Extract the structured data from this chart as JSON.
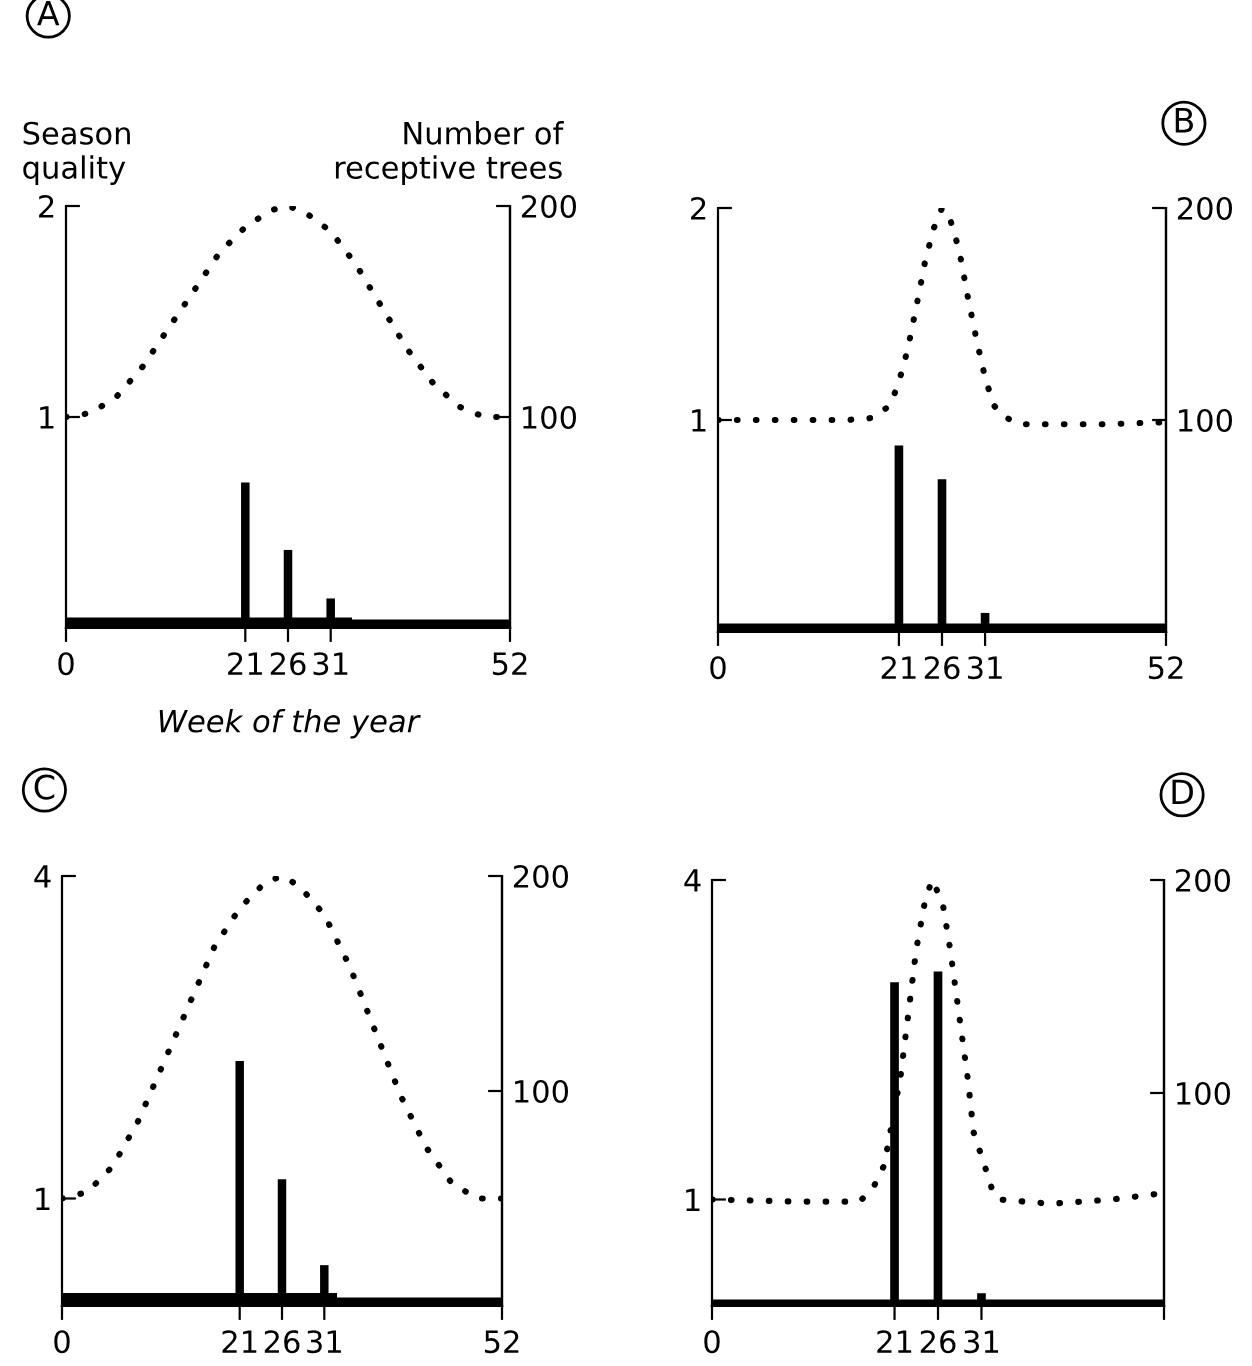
{
  "chart_data": [
    {
      "type": "line",
      "title": "A",
      "ylabel": "Season\nquality",
      "y2label": "Number of\nreceptive trees",
      "xlabel": "Week of the year",
      "xlim": [
        0,
        52
      ],
      "xticks": [
        0,
        21,
        26,
        31,
        52
      ],
      "ylim": [
        0,
        2
      ],
      "yticks": [
        1,
        2
      ],
      "y2lim": [
        0,
        200
      ],
      "y2ticks": [
        100,
        200
      ],
      "series": [
        {
          "type": "area",
          "axis": "y2",
          "color": "#000000",
          "x": [
            0,
            33.5,
            33.5,
            52
          ],
          "values": [
            5,
            5,
            4,
            4
          ]
        },
        {
          "type": "bar",
          "axis": "y2",
          "color": "#000000",
          "x": [
            21,
            26,
            31
          ],
          "values": [
            69,
            37,
            14
          ]
        },
        {
          "color": "#000000",
          "line_style": "dotted",
          "marker": "none",
          "x": [
            0,
            3,
            6,
            9,
            12,
            15,
            18,
            21,
            24,
            26,
            28,
            31,
            34,
            37,
            40,
            43,
            46,
            49,
            52
          ],
          "values": [
            1.0,
            1.02,
            1.1,
            1.24,
            1.42,
            1.6,
            1.78,
            1.9,
            1.98,
            2.0,
            1.97,
            1.88,
            1.72,
            1.52,
            1.32,
            1.16,
            1.05,
            1.0,
            1.0
          ]
        }
      ]
    },
    {
      "type": "line",
      "title": "B",
      "xlim": [
        0,
        52
      ],
      "xticks": [
        0,
        21,
        26,
        31,
        52
      ],
      "ylim": [
        0,
        2
      ],
      "yticks": [
        1,
        2
      ],
      "y2lim": [
        0,
        200
      ],
      "y2ticks": [
        100,
        200
      ],
      "series": [
        {
          "type": "area",
          "axis": "y2",
          "color": "#000000",
          "x": [
            0,
            52
          ],
          "values": [
            4,
            4
          ]
        },
        {
          "type": "bar",
          "axis": "y2",
          "color": "#000000",
          "x": [
            21,
            26,
            31
          ],
          "values": [
            88,
            72,
            9
          ]
        },
        {
          "color": "#000000",
          "line_style": "dotted",
          "marker": "none",
          "x": [
            0,
            5,
            10,
            15,
            18,
            20,
            21,
            22,
            23,
            24,
            25,
            26,
            27,
            28,
            29,
            30,
            31,
            32,
            33,
            35,
            40,
            45,
            52
          ],
          "values": [
            1,
            1,
            1,
            1,
            1.01,
            1.07,
            1.18,
            1.33,
            1.53,
            1.74,
            1.9,
            2.0,
            1.94,
            1.8,
            1.58,
            1.38,
            1.2,
            1.07,
            1.02,
            0.98,
            0.98,
            0.98,
            0.99
          ]
        }
      ]
    },
    {
      "type": "line",
      "title": "C",
      "xlim": [
        0,
        52
      ],
      "xticks": [
        0,
        21,
        26,
        31,
        52
      ],
      "ylim": [
        0,
        4
      ],
      "yticks": [
        1,
        4
      ],
      "y2lim": [
        0,
        200
      ],
      "y2ticks": [
        100,
        200
      ],
      "series": [
        {
          "type": "area",
          "axis": "y2",
          "color": "#000000",
          "x": [
            0,
            32.5,
            32.5,
            52
          ],
          "values": [
            6,
            6,
            4,
            4
          ]
        },
        {
          "type": "bar",
          "axis": "y2",
          "color": "#000000",
          "x": [
            21,
            26,
            31
          ],
          "values": [
            114,
            59,
            19
          ]
        },
        {
          "color": "#000000",
          "line_style": "dotted",
          "marker": "none",
          "x": [
            0,
            3,
            6,
            9,
            12,
            15,
            18,
            21,
            24,
            26,
            28,
            31,
            34,
            37,
            40,
            43,
            46,
            49,
            52
          ],
          "values": [
            1.0,
            1.06,
            1.3,
            1.72,
            2.26,
            2.8,
            3.34,
            3.7,
            3.94,
            4.0,
            3.91,
            3.64,
            3.16,
            2.56,
            1.96,
            1.48,
            1.15,
            1.0,
            1.0
          ]
        }
      ]
    },
    {
      "type": "line",
      "title": "D",
      "xlim": [
        0,
        52
      ],
      "xticks": [
        0,
        21,
        26,
        31,
        {
          "value": 52,
          "label": null
        }
      ],
      "ylim": [
        0,
        4
      ],
      "yticks": [
        1,
        4
      ],
      "y2lim": [
        0,
        200
      ],
      "y2ticks": [
        100,
        200
      ],
      "series": [
        {
          "type": "area",
          "axis": "y2",
          "color": "#000000",
          "x": [
            0,
            52
          ],
          "values": [
            3,
            3
          ]
        },
        {
          "type": "bar",
          "axis": "y2",
          "color": "#000000",
          "x": [
            21,
            26,
            31
          ],
          "values": [
            152,
            157,
            6
          ]
        },
        {
          "color": "#000000",
          "line_style": "dotted",
          "marker": "none",
          "x": [
            0,
            10,
            17,
            18.6,
            19.8,
            20.6,
            21.7,
            22.6,
            23.5,
            24.5,
            25.3,
            26.5,
            27.4,
            28.4,
            29.4,
            30.1,
            31.4,
            32.2,
            33,
            39,
            46,
            52
          ],
          "values": [
            1,
            0.98,
            0.98,
            1.12,
            1.32,
            1.67,
            2.16,
            2.75,
            3.35,
            3.8,
            4.0,
            3.8,
            3.35,
            2.75,
            2.15,
            1.63,
            1.31,
            1.1,
            1.0,
            0.96,
            1.0,
            1.06
          ]
        }
      ]
    }
  ]
}
